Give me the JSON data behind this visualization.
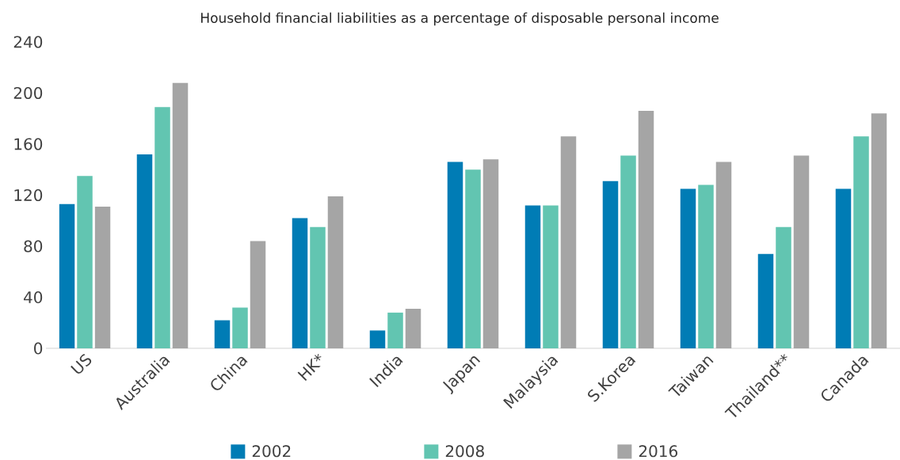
{
  "chart_data": {
    "type": "bar",
    "title": "Household financial liabilities as a percentage of disposable personal income",
    "categories": [
      "US",
      "Australia",
      "China",
      "HK*",
      "India",
      "Japan",
      "Malaysia",
      "S.Korea",
      "Taiwan",
      "Thailand**",
      "Canada"
    ],
    "series": [
      {
        "name": "2002",
        "color": "#007cb5",
        "values": [
          113,
          152,
          22,
          102,
          14,
          146,
          112,
          131,
          125,
          74,
          125
        ]
      },
      {
        "name": "2008",
        "color": "#62c5b1",
        "values": [
          135,
          189,
          32,
          95,
          28,
          140,
          112,
          151,
          128,
          95,
          166
        ]
      },
      {
        "name": "2016",
        "color": "#a5a5a5",
        "values": [
          111,
          208,
          84,
          119,
          31,
          148,
          166,
          186,
          146,
          151,
          184
        ]
      }
    ],
    "ylim": [
      0,
      240
    ],
    "yticks": [
      0,
      40,
      80,
      120,
      160,
      200,
      240
    ],
    "grid": false,
    "legend": "bottom"
  }
}
